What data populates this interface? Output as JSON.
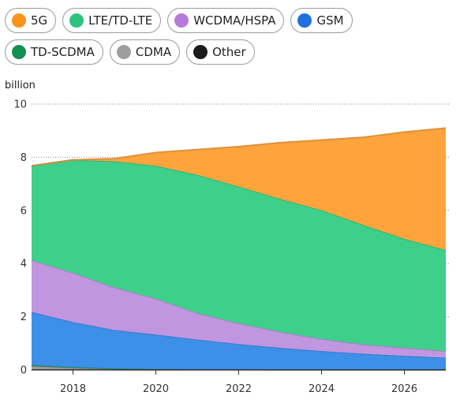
{
  "chart_data": {
    "type": "area",
    "stacked": true,
    "unit_label": "billion",
    "x": [
      2017,
      2018,
      2019,
      2020,
      2021,
      2022,
      2023,
      2024,
      2025,
      2026,
      2027
    ],
    "x_ticks": [
      "2018",
      "2020",
      "2022",
      "2024",
      "2026"
    ],
    "y_ticks": [
      "0",
      "2",
      "4",
      "6",
      "8",
      "10"
    ],
    "ylim": [
      0,
      10
    ],
    "xlim": [
      2017,
      2027
    ],
    "grid": "horizontal dotted",
    "legend_position": "top",
    "series": [
      {
        "name": "Other",
        "color": "#222222",
        "values": [
          0.02,
          0.02,
          0.01,
          0.01,
          0.01,
          0.01,
          0.01,
          0.01,
          0.01,
          0.01,
          0.01
        ]
      },
      {
        "name": "CDMA",
        "color": "#9e9e9e",
        "values": [
          0.12,
          0.06,
          0.03,
          0.02,
          0.01,
          0.01,
          0.0,
          0.0,
          0.0,
          0.0,
          0.0
        ]
      },
      {
        "name": "TD-SCDMA",
        "color": "#1a9a5a",
        "values": [
          0.04,
          0.02,
          0.01,
          0.0,
          0.0,
          0.0,
          0.0,
          0.0,
          0.0,
          0.0,
          0.0
        ]
      },
      {
        "name": "GSM",
        "color": "#3d8fe8",
        "values": [
          2.0,
          1.7,
          1.45,
          1.3,
          1.12,
          0.95,
          0.82,
          0.7,
          0.6,
          0.52,
          0.45
        ]
      },
      {
        "name": "WCDMA/HSPA",
        "color": "#c196e0",
        "values": [
          1.95,
          1.85,
          1.6,
          1.35,
          1.0,
          0.78,
          0.6,
          0.45,
          0.35,
          0.3,
          0.25
        ]
      },
      {
        "name": "LTE/TD-LTE",
        "color": "#3ecf8a",
        "values": [
          3.55,
          4.25,
          4.75,
          5.0,
          5.2,
          5.15,
          5.0,
          4.85,
          4.5,
          4.1,
          3.8
        ]
      },
      {
        "name": "5G",
        "color": "#ffa43d",
        "values": [
          0.0,
          0.0,
          0.1,
          0.5,
          0.95,
          1.5,
          2.12,
          2.64,
          3.29,
          4.02,
          4.59
        ]
      }
    ]
  },
  "legend": [
    {
      "label": "5G",
      "color": "#f7941d"
    },
    {
      "label": "LTE/TD-LTE",
      "color": "#2ec27e"
    },
    {
      "label": "WCDMA/HSPA",
      "color": "#b57bd9"
    },
    {
      "label": "GSM",
      "color": "#1f6fe0"
    },
    {
      "label": "TD-SCDMA",
      "color": "#12904f"
    },
    {
      "label": "CDMA",
      "color": "#9e9e9e"
    },
    {
      "label": "Other",
      "color": "#1a1a1a"
    }
  ]
}
